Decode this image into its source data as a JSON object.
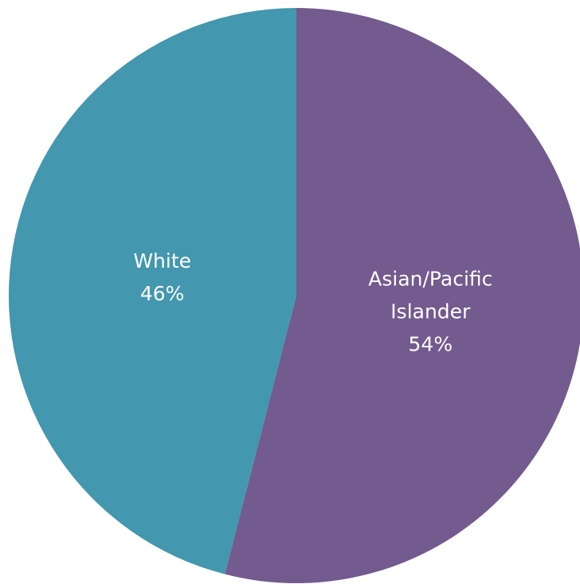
{
  "chart_data": {
    "type": "pie",
    "categories": [
      "Asian/Pacific Islander",
      "White"
    ],
    "values": [
      54,
      46
    ],
    "value_labels": [
      "54%",
      "46%"
    ],
    "colors": [
      "#735a8f",
      "#4397ae"
    ]
  }
}
